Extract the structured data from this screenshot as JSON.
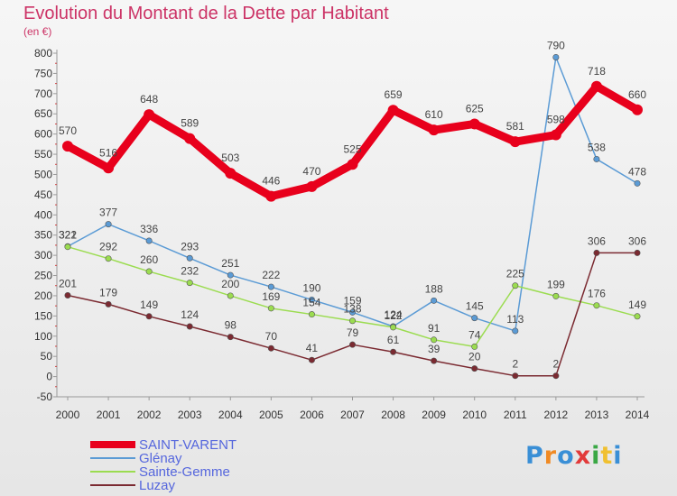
{
  "header": {
    "title": "Evolution du Montant de la Dette par Habitant",
    "unit": "(en €)"
  },
  "logo": {
    "text": "Proxiti",
    "colors": [
      "#3a8fd6",
      "#f08a24",
      "#3a8fd6",
      "#e23a3a",
      "#3aa845",
      "#f0c030",
      "#3a8fd6"
    ]
  },
  "chart_data": {
    "type": "line",
    "title": "Evolution du Montant de la Dette par Habitant",
    "ylabel": "(en €)",
    "xlabel": "",
    "ylim": [
      -50,
      800
    ],
    "yticks": [
      -50,
      0,
      50,
      100,
      150,
      200,
      250,
      300,
      350,
      400,
      450,
      500,
      550,
      600,
      650,
      700,
      750,
      800
    ],
    "x": [
      "2000",
      "2001",
      "2002",
      "2003",
      "2004",
      "2005",
      "2006",
      "2007",
      "2008",
      "2009",
      "2010",
      "2011",
      "2012",
      "2013",
      "2014"
    ],
    "grid": false,
    "legend_position": "bottom-left",
    "series": [
      {
        "name": "SAINT-VARENT",
        "color": "#e8001c",
        "values": [
          570,
          516,
          648,
          589,
          503,
          446,
          470,
          525,
          659,
          610,
          625,
          581,
          598,
          718,
          660
        ]
      },
      {
        "name": "Glénay",
        "color": "#5b9bd5",
        "values": [
          322,
          377,
          336,
          293,
          251,
          222,
          190,
          159,
          124,
          188,
          145,
          113,
          790,
          538,
          478
        ]
      },
      {
        "name": "Sainte-Gemme",
        "color": "#9bdc50",
        "values": [
          321,
          292,
          260,
          232,
          200,
          169,
          154,
          138,
          122,
          91,
          74,
          225,
          199,
          176,
          149
        ]
      },
      {
        "name": "Luzay",
        "color": "#7b2a31",
        "values": [
          201,
          179,
          149,
          124,
          98,
          70,
          41,
          79,
          61,
          39,
          20,
          2,
          2,
          306,
          306
        ]
      }
    ]
  }
}
